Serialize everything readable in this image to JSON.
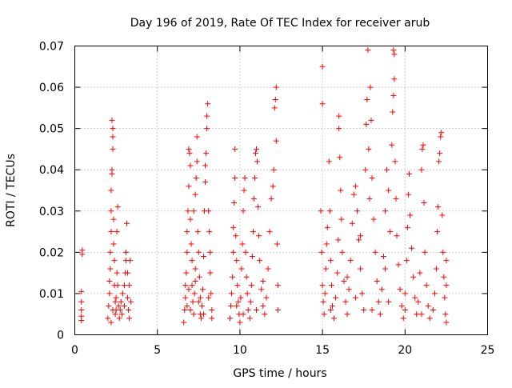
{
  "chart_data": {
    "type": "scatter",
    "title": "Day 196 of 2019, Rate Of TEC Index for receiver arub",
    "xlabel": "GPS time / hours",
    "ylabel": "ROTI / TECUs",
    "xlim": [
      0,
      25
    ],
    "ylim": [
      0,
      0.07
    ],
    "x_ticks": [
      "0",
      "5",
      "10",
      "15",
      "20",
      "25"
    ],
    "y_ticks": [
      "0",
      "0.01",
      "0.02",
      "0.03",
      "0.04",
      "0.05",
      "0.06",
      "0.07"
    ],
    "x_tick_values": [
      0,
      5,
      10,
      15,
      20,
      25
    ],
    "y_tick_values": [
      0,
      0.01,
      0.02,
      0.03,
      0.04,
      0.05,
      0.06,
      0.07
    ],
    "grid": true,
    "marker": "+",
    "color": "#ff0000",
    "series": [
      {
        "name": "",
        "points": [
          [
            0.4,
            0.0045
          ],
          [
            0.4,
            0.006
          ],
          [
            0.4,
            0.008
          ],
          [
            0.4,
            0.0105
          ],
          [
            0.45,
            0.0195
          ],
          [
            0.45,
            0.0205
          ],
          [
            0.4,
            0.0035
          ],
          [
            2.0,
            0.004
          ],
          [
            2.05,
            0.007
          ],
          [
            2.1,
            0.01
          ],
          [
            2.1,
            0.013
          ],
          [
            2.15,
            0.016
          ],
          [
            2.15,
            0.02
          ],
          [
            2.2,
            0.025
          ],
          [
            2.2,
            0.03
          ],
          [
            2.2,
            0.035
          ],
          [
            2.25,
            0.039
          ],
          [
            2.25,
            0.04
          ],
          [
            2.3,
            0.045
          ],
          [
            2.3,
            0.048
          ],
          [
            2.3,
            0.05
          ],
          [
            2.25,
            0.052
          ],
          [
            2.35,
            0.028
          ],
          [
            2.35,
            0.022
          ],
          [
            2.4,
            0.018
          ],
          [
            2.4,
            0.012
          ],
          [
            2.45,
            0.008
          ],
          [
            2.45,
            0.005
          ],
          [
            2.5,
            0.006
          ],
          [
            2.5,
            0.009
          ],
          [
            2.55,
            0.015
          ],
          [
            2.55,
            0.025
          ],
          [
            2.6,
            0.031
          ],
          [
            2.6,
            0.012
          ],
          [
            2.65,
            0.007
          ],
          [
            2.7,
            0.004
          ],
          [
            2.75,
            0.006
          ],
          [
            2.8,
            0.008
          ],
          [
            2.9,
            0.01
          ],
          [
            3.0,
            0.012
          ],
          [
            3.05,
            0.015
          ],
          [
            3.1,
            0.018
          ],
          [
            3.1,
            0.02
          ],
          [
            3.15,
            0.027
          ],
          [
            3.2,
            0.015
          ],
          [
            3.2,
            0.009
          ],
          [
            3.25,
            0.006
          ],
          [
            3.3,
            0.004
          ],
          [
            3.3,
            0.012
          ],
          [
            3.35,
            0.018
          ],
          [
            3.4,
            0.008
          ],
          [
            2.85,
            0.005
          ],
          [
            3.0,
            0.007
          ],
          [
            2.2,
            0.003
          ],
          [
            2.3,
            0.006
          ],
          [
            6.6,
            0.003
          ],
          [
            6.65,
            0.006
          ],
          [
            6.7,
            0.009
          ],
          [
            6.7,
            0.012
          ],
          [
            6.75,
            0.015
          ],
          [
            6.8,
            0.02
          ],
          [
            6.8,
            0.025
          ],
          [
            6.85,
            0.03
          ],
          [
            6.9,
            0.036
          ],
          [
            6.9,
            0.045
          ],
          [
            6.95,
            0.044
          ],
          [
            7.0,
            0.041
          ],
          [
            7.0,
            0.028
          ],
          [
            7.05,
            0.022
          ],
          [
            7.1,
            0.018
          ],
          [
            7.1,
            0.012
          ],
          [
            7.15,
            0.008
          ],
          [
            7.2,
            0.005
          ],
          [
            7.25,
            0.01
          ],
          [
            7.3,
            0.016
          ],
          [
            7.3,
            0.034
          ],
          [
            7.35,
            0.038
          ],
          [
            7.4,
            0.042
          ],
          [
            7.4,
            0.048
          ],
          [
            7.45,
            0.025
          ],
          [
            7.5,
            0.02
          ],
          [
            7.55,
            0.014
          ],
          [
            7.6,
            0.009
          ],
          [
            7.6,
            0.005
          ],
          [
            7.65,
            0.004
          ],
          [
            7.7,
            0.007
          ],
          [
            7.75,
            0.011
          ],
          [
            7.8,
            0.019
          ],
          [
            7.85,
            0.03
          ],
          [
            7.9,
            0.037
          ],
          [
            7.9,
            0.041
          ],
          [
            7.95,
            0.044
          ],
          [
            8.0,
            0.05
          ],
          [
            8.0,
            0.053
          ],
          [
            8.05,
            0.056
          ],
          [
            8.1,
            0.03
          ],
          [
            8.15,
            0.025
          ],
          [
            8.2,
            0.02
          ],
          [
            8.2,
            0.015
          ],
          [
            8.25,
            0.01
          ],
          [
            8.3,
            0.006
          ],
          [
            8.3,
            0.004
          ],
          [
            7.2,
            0.03
          ],
          [
            6.8,
            0.007
          ],
          [
            7.0,
            0.006
          ],
          [
            7.5,
            0.008
          ],
          [
            8.1,
            0.009
          ],
          [
            7.8,
            0.005
          ],
          [
            6.9,
            0.011
          ],
          [
            7.3,
            0.013
          ],
          [
            9.4,
            0.004
          ],
          [
            9.45,
            0.007
          ],
          [
            9.5,
            0.01
          ],
          [
            9.55,
            0.014
          ],
          [
            9.6,
            0.02
          ],
          [
            9.6,
            0.026
          ],
          [
            9.65,
            0.032
          ],
          [
            9.7,
            0.038
          ],
          [
            9.7,
            0.045
          ],
          [
            9.75,
            0.024
          ],
          [
            9.8,
            0.018
          ],
          [
            9.85,
            0.012
          ],
          [
            9.9,
            0.008
          ],
          [
            9.95,
            0.005
          ],
          [
            10.0,
            0.003
          ],
          [
            10.05,
            0.009
          ],
          [
            10.1,
            0.016
          ],
          [
            10.15,
            0.022
          ],
          [
            10.2,
            0.03
          ],
          [
            10.25,
            0.035
          ],
          [
            10.3,
            0.038
          ],
          [
            10.35,
            0.02
          ],
          [
            10.4,
            0.014
          ],
          [
            10.45,
            0.01
          ],
          [
            10.5,
            0.006
          ],
          [
            10.6,
            0.004
          ],
          [
            10.65,
            0.008
          ],
          [
            10.7,
            0.012
          ],
          [
            10.75,
            0.019
          ],
          [
            10.8,
            0.025
          ],
          [
            10.85,
            0.033
          ],
          [
            10.9,
            0.038
          ],
          [
            10.95,
            0.044
          ],
          [
            11.0,
            0.045
          ],
          [
            11.05,
            0.042
          ],
          [
            11.1,
            0.031
          ],
          [
            11.15,
            0.024
          ],
          [
            11.2,
            0.018
          ],
          [
            11.3,
            0.011
          ],
          [
            11.4,
            0.007
          ],
          [
            11.5,
            0.005
          ],
          [
            11.6,
            0.009
          ],
          [
            11.7,
            0.016
          ],
          [
            11.8,
            0.025
          ],
          [
            11.9,
            0.033
          ],
          [
            12.0,
            0.036
          ],
          [
            12.05,
            0.04
          ],
          [
            12.1,
            0.055
          ],
          [
            12.15,
            0.057
          ],
          [
            12.2,
            0.06
          ],
          [
            12.2,
            0.047
          ],
          [
            12.25,
            0.022
          ],
          [
            12.3,
            0.012
          ],
          [
            12.3,
            0.006
          ],
          [
            11.0,
            0.006
          ],
          [
            10.2,
            0.005
          ],
          [
            9.8,
            0.007
          ],
          [
            11.4,
            0.013
          ],
          [
            15.0,
            0.065
          ],
          [
            15.0,
            0.056
          ],
          [
            14.9,
            0.03
          ],
          [
            14.95,
            0.02
          ],
          [
            15.0,
            0.012
          ],
          [
            15.05,
            0.008
          ],
          [
            15.1,
            0.005
          ],
          [
            15.15,
            0.01
          ],
          [
            15.2,
            0.016
          ],
          [
            15.25,
            0.022
          ],
          [
            15.3,
            0.026
          ],
          [
            15.4,
            0.042
          ],
          [
            15.45,
            0.03
          ],
          [
            15.5,
            0.018
          ],
          [
            15.55,
            0.012
          ],
          [
            15.6,
            0.007
          ],
          [
            15.7,
            0.004
          ],
          [
            15.8,
            0.009
          ],
          [
            15.9,
            0.015
          ],
          [
            15.95,
            0.023
          ],
          [
            16.0,
            0.05
          ],
          [
            16.0,
            0.053
          ],
          [
            16.05,
            0.043
          ],
          [
            16.1,
            0.035
          ],
          [
            16.15,
            0.028
          ],
          [
            16.2,
            0.02
          ],
          [
            16.3,
            0.013
          ],
          [
            16.4,
            0.008
          ],
          [
            16.5,
            0.005
          ],
          [
            16.6,
            0.011
          ],
          [
            16.7,
            0.018
          ],
          [
            16.8,
            0.027
          ],
          [
            16.9,
            0.034
          ],
          [
            17.0,
            0.036
          ],
          [
            17.1,
            0.03
          ],
          [
            17.2,
            0.023
          ],
          [
            17.3,
            0.016
          ],
          [
            17.4,
            0.01
          ],
          [
            17.5,
            0.006
          ],
          [
            17.6,
            0.04
          ],
          [
            17.65,
            0.051
          ],
          [
            17.7,
            0.057
          ],
          [
            17.75,
            0.069
          ],
          [
            17.8,
            0.045
          ],
          [
            17.85,
            0.033
          ],
          [
            17.9,
            0.06
          ],
          [
            17.95,
            0.052
          ],
          [
            18.0,
            0.038
          ],
          [
            18.1,
            0.028
          ],
          [
            18.2,
            0.02
          ],
          [
            18.3,
            0.013
          ],
          [
            18.4,
            0.008
          ],
          [
            18.5,
            0.005
          ],
          [
            18.6,
            0.011
          ],
          [
            18.7,
            0.019
          ],
          [
            18.8,
            0.03
          ],
          [
            18.9,
            0.04
          ],
          [
            19.0,
            0.035
          ],
          [
            19.1,
            0.025
          ],
          [
            19.2,
            0.046
          ],
          [
            19.25,
            0.054
          ],
          [
            19.3,
            0.058
          ],
          [
            19.35,
            0.062
          ],
          [
            19.35,
            0.068
          ],
          [
            19.3,
            0.069
          ],
          [
            19.4,
            0.042
          ],
          [
            19.45,
            0.033
          ],
          [
            19.5,
            0.024
          ],
          [
            19.6,
            0.017
          ],
          [
            19.7,
            0.011
          ],
          [
            19.8,
            0.007
          ],
          [
            19.9,
            0.004
          ],
          [
            20.0,
            0.01
          ],
          [
            20.1,
            0.018
          ],
          [
            20.15,
            0.026
          ],
          [
            20.2,
            0.034
          ],
          [
            20.25,
            0.039
          ],
          [
            20.3,
            0.029
          ],
          [
            20.4,
            0.021
          ],
          [
            20.5,
            0.014
          ],
          [
            20.6,
            0.009
          ],
          [
            20.7,
            0.005
          ],
          [
            20.8,
            0.008
          ],
          [
            20.9,
            0.015
          ],
          [
            21.0,
            0.04
          ],
          [
            21.05,
            0.045
          ],
          [
            21.1,
            0.046
          ],
          [
            21.15,
            0.032
          ],
          [
            21.2,
            0.02
          ],
          [
            21.3,
            0.012
          ],
          [
            21.4,
            0.007
          ],
          [
            21.5,
            0.004
          ],
          [
            21.7,
            0.006
          ],
          [
            21.8,
            0.01
          ],
          [
            21.9,
            0.016
          ],
          [
            21.95,
            0.025
          ],
          [
            22.0,
            0.031
          ],
          [
            22.05,
            0.042
          ],
          [
            22.1,
            0.044
          ],
          [
            22.15,
            0.048
          ],
          [
            22.2,
            0.049
          ],
          [
            22.25,
            0.029
          ],
          [
            22.3,
            0.02
          ],
          [
            22.35,
            0.014
          ],
          [
            22.4,
            0.009
          ],
          [
            22.45,
            0.005
          ],
          [
            22.5,
            0.003
          ],
          [
            22.5,
            0.012
          ],
          [
            22.5,
            0.018
          ],
          [
            16.5,
            0.014
          ],
          [
            17.0,
            0.009
          ],
          [
            18.0,
            0.006
          ],
          [
            19.0,
            0.008
          ],
          [
            20.0,
            0.006
          ],
          [
            21.0,
            0.005
          ],
          [
            15.5,
            0.006
          ],
          [
            17.3,
            0.024
          ],
          [
            18.8,
            0.016
          ]
        ]
      }
    ]
  }
}
